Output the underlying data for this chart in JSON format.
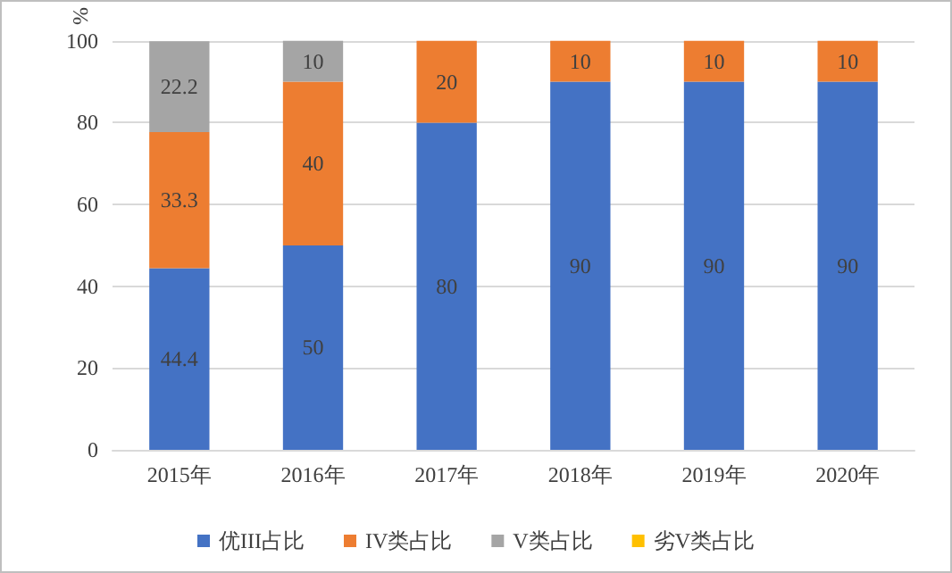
{
  "chart_data": {
    "type": "bar",
    "stacked": true,
    "ylabel": "%",
    "categories": [
      "2015年",
      "2016年",
      "2017年",
      "2018年",
      "2019年",
      "2020年"
    ],
    "series": [
      {
        "name": "优III占比",
        "color": "#4472c4",
        "values": [
          44.4,
          50,
          80,
          90,
          90,
          90
        ],
        "value_labels": [
          "44.4",
          "50",
          "80",
          "90",
          "90",
          "90"
        ]
      },
      {
        "name": "IV类占比",
        "color": "#ed7d31",
        "values": [
          33.3,
          40,
          20,
          10,
          10,
          10
        ],
        "value_labels": [
          "33.3",
          "40",
          "20",
          "10",
          "10",
          "10"
        ]
      },
      {
        "name": "V类占比",
        "color": "#a5a5a5",
        "values": [
          22.2,
          10,
          0,
          0,
          0,
          0
        ],
        "value_labels": [
          "22.2",
          "10",
          null,
          null,
          null,
          null
        ]
      },
      {
        "name": "劣V类占比",
        "color": "#ffc000",
        "values": [
          0,
          0,
          0,
          0,
          0,
          0
        ]
      }
    ],
    "ylim": [
      0,
      100
    ],
    "yticks": [
      0,
      20,
      40,
      60,
      80,
      100
    ],
    "grid": "y",
    "legend": "bottom"
  }
}
